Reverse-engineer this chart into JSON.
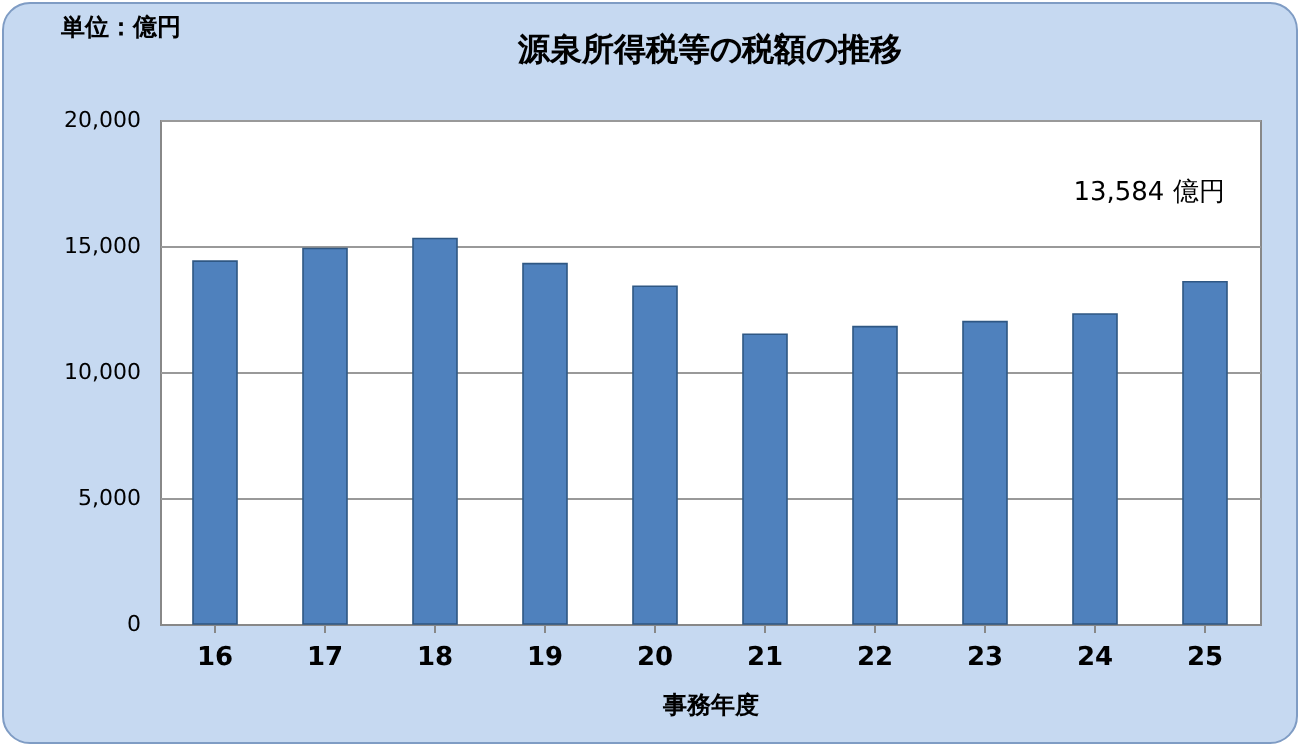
{
  "chart_data": {
    "type": "bar",
    "title": "源泉所得税等の税額の推移",
    "ylabel": "単位：億円",
    "xlabel": "事務年度",
    "categories": [
      "16",
      "17",
      "18",
      "19",
      "20",
      "21",
      "22",
      "23",
      "24",
      "25"
    ],
    "values": [
      14400,
      14900,
      15300,
      14300,
      13400,
      11500,
      11800,
      12000,
      12300,
      13584
    ],
    "color": "#4f81bd",
    "ylim": [
      0,
      20000
    ],
    "yticks": [
      "0",
      {
        "value": 5000,
        "label": "5,000"
      },
      {
        "value": 10000,
        "label": "10,000"
      },
      {
        "value": 15000,
        "label": "15,000"
      },
      {
        "value": 20000,
        "label": "20,000"
      }
    ],
    "grid": "y",
    "annotations": [
      {
        "text": "13,584 億円",
        "x": "25",
        "y": 13584
      }
    ]
  }
}
